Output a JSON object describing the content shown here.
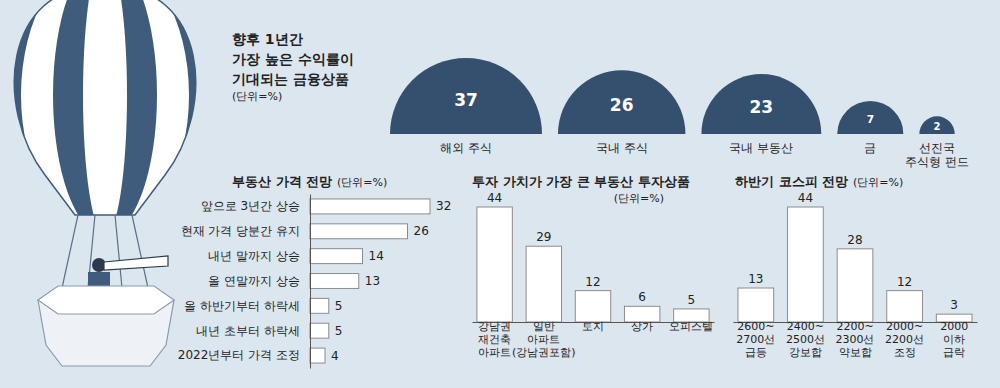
{
  "chart_data": [
    {
      "type": "semicircle",
      "title": "향후 1년간\n가장 높은 수익률이\n기대되는 금융상품",
      "subtitle": "(단위=%)",
      "categories": [
        "해외 주식",
        "국내 주식",
        "국내 부동산",
        "금",
        "선진국\n주식형 펀드"
      ],
      "values": [
        37,
        26,
        23,
        7,
        2
      ],
      "color": "#34506e",
      "data_labels": true
    },
    {
      "type": "bar",
      "orientation": "horizontal",
      "title": "부동산 가격 전망",
      "subtitle": "(단위=%)",
      "categories": [
        "앞으로 3년간 상승",
        "현재 가격 당분간 유지",
        "내년 말까지 상승",
        "올 연말까지 상승",
        "올 하반기부터 하락세",
        "내년 초부터 하락세",
        "2022년부터 가격 조정"
      ],
      "values": [
        32,
        26,
        14,
        13,
        5,
        5,
        4
      ],
      "color": "#ffffff",
      "xlim": [
        0,
        32
      ],
      "xticks": [],
      "tick_labels": "y",
      "data_labels": true
    },
    {
      "type": "bar",
      "title": "투자 가치가 가장 큰 부동산 투자상품",
      "subtitle": "(단위=%)",
      "categories": [
        "강남권\n재건축\n아파트",
        "일반\n아파트\n(강남권포함)",
        "토지",
        "상가",
        "오피스텔"
      ],
      "values": [
        44,
        29,
        12,
        6,
        5
      ],
      "color": "#ffffff",
      "ylim": [
        0,
        44
      ],
      "yticks": [],
      "tick_labels": "x",
      "data_labels": true
    },
    {
      "type": "bar",
      "title": "하반기 코스피 전망",
      "subtitle": "(단위=%)",
      "categories": [
        "2600~\n2700선\n급등",
        "2400~\n2500선\n강보합",
        "2200~\n2300선\n약보합",
        "2000~\n2200선\n조정",
        "2000\n이하\n급락"
      ],
      "values": [
        13,
        44,
        28,
        12,
        3
      ],
      "color": "#ffffff",
      "ylim": [
        0,
        44
      ],
      "yticks": [],
      "tick_labels": "x",
      "data_labels": true
    }
  ]
}
